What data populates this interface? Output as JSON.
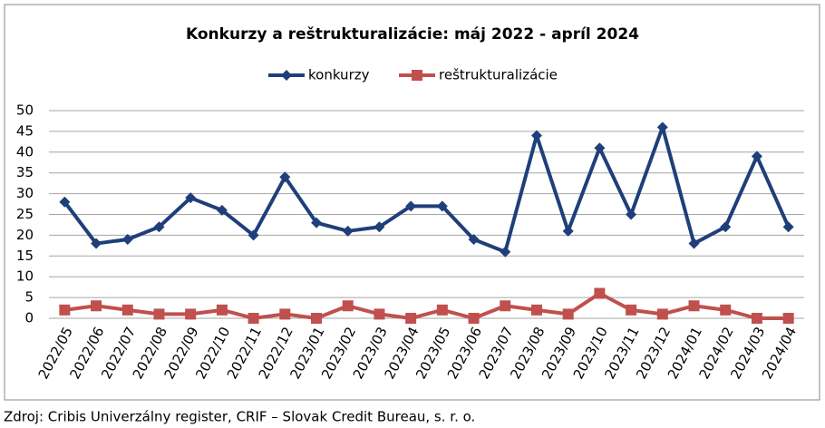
{
  "chart_data": {
    "type": "line",
    "title": "Konkurzy a reštrukturalizácie: máj 2022 - apríl 2024",
    "categories": [
      "2022/05",
      "2022/06",
      "2022/07",
      "2022/08",
      "2022/09",
      "2022/10",
      "2022/11",
      "2022/12",
      "2023/01",
      "2023/02",
      "2023/03",
      "2023/04",
      "2023/05",
      "2023/06",
      "2023/07",
      "2023/08",
      "2023/09",
      "2023/10",
      "2023/11",
      "2023/12",
      "2024/01",
      "2024/02",
      "2024/03",
      "2024/04"
    ],
    "series": [
      {
        "name": "konkurzy",
        "color": "#1f3f7a",
        "marker": "diamond",
        "values": [
          28,
          18,
          19,
          22,
          29,
          26,
          20,
          34,
          23,
          21,
          22,
          27,
          27,
          19,
          16,
          44,
          21,
          41,
          25,
          46,
          18,
          22,
          39,
          22
        ]
      },
      {
        "name": "reštrukturalizácie",
        "color": "#c0504d",
        "marker": "square",
        "values": [
          2,
          3,
          2,
          1,
          1,
          2,
          0,
          1,
          0,
          3,
          1,
          0,
          2,
          0,
          3,
          2,
          1,
          6,
          2,
          1,
          3,
          2,
          0,
          0
        ]
      }
    ],
    "ylim": [
      0,
      50
    ],
    "yticks": [
      0,
      5,
      10,
      15,
      20,
      25,
      30,
      35,
      40,
      45,
      50
    ],
    "grid": true,
    "legend": "top",
    "source": "Zdroj: Cribis Univerzálny register, CRIF – Slovak Credit Bureau, s. r. o."
  }
}
